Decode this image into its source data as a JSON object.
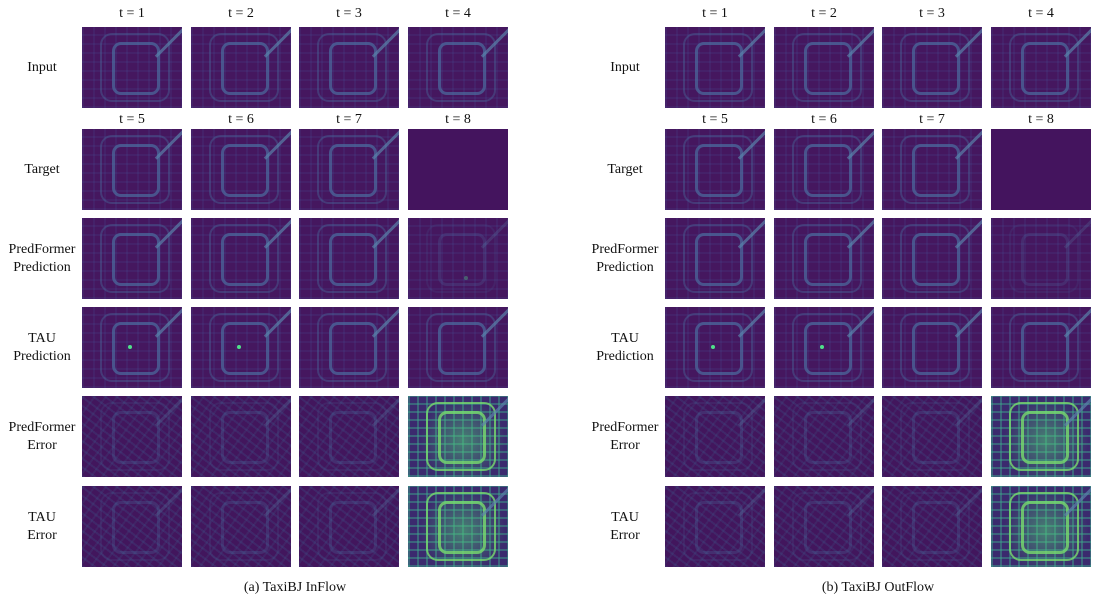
{
  "panels": [
    {
      "caption": "(a) TaxiBJ InFlow",
      "input_headers": [
        "t = 1",
        "t = 2",
        "t = 3",
        "t = 4"
      ],
      "output_headers": [
        "t = 5",
        "t = 6",
        "t = 7",
        "t = 8"
      ],
      "rows": [
        {
          "label": [
            "Input"
          ]
        },
        {
          "label": [
            "Target"
          ]
        },
        {
          "label": [
            "PredFormer",
            "Prediction"
          ]
        },
        {
          "label": [
            "TAU",
            "Prediction"
          ]
        },
        {
          "label": [
            "PredFormer",
            "Error"
          ]
        },
        {
          "label": [
            "TAU",
            "Error"
          ]
        }
      ]
    },
    {
      "caption": "(b) TaxiBJ OutFlow",
      "input_headers": [
        "t = 1",
        "t = 2",
        "t = 3",
        "t = 4"
      ],
      "output_headers": [
        "t = 5",
        "t = 6",
        "t = 7",
        "t = 8"
      ],
      "rows": [
        {
          "label": [
            "Input"
          ]
        },
        {
          "label": [
            "Target"
          ]
        },
        {
          "label": [
            "PredFormer",
            "Prediction"
          ]
        },
        {
          "label": [
            "TAU",
            "Prediction"
          ]
        },
        {
          "label": [
            "PredFormer",
            "Error"
          ]
        },
        {
          "label": [
            "TAU",
            "Error"
          ]
        }
      ]
    }
  ]
}
